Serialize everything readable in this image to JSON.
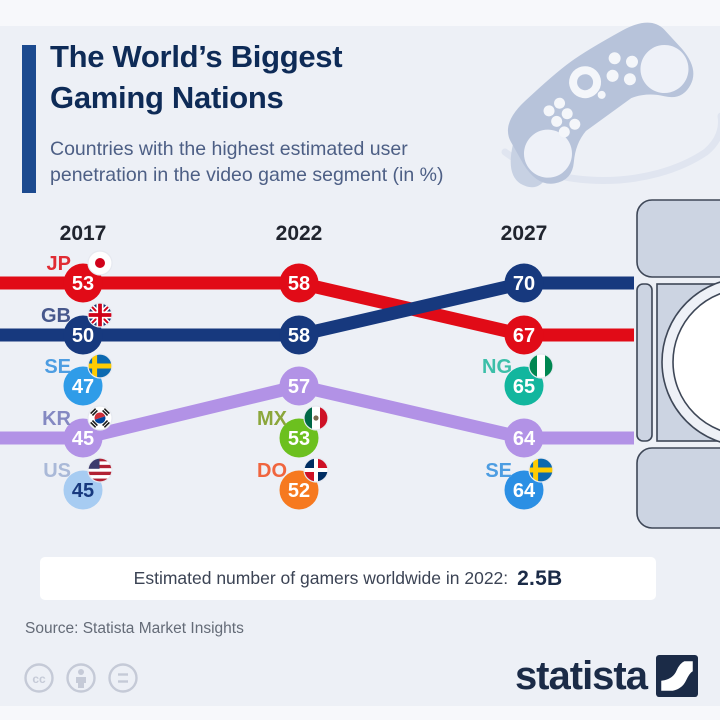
{
  "header": {
    "title_line1": "The World’s Biggest",
    "title_line2": "Gaming Nations",
    "subtitle_line1": "Countries with the highest estimated user",
    "subtitle_line2": "penetration in the video game segment (in %)",
    "accent_color": "#1c4a8f",
    "title_color": "#0e2b57"
  },
  "chart_data": {
    "type": "line",
    "x": [
      "2017",
      "2022",
      "2027"
    ],
    "unit": "% user penetration",
    "series": [
      {
        "code": "JP",
        "flag": "japan-flag-icon",
        "values": [
          53,
          58,
          67
        ],
        "rows": [
          1,
          1,
          2
        ],
        "color": "#e10b17",
        "label_color": "#e02b33",
        "value_color": "#ffffff"
      },
      {
        "code": "GB",
        "flag": "united-kingdom-flag-icon",
        "values": [
          50,
          58,
          70
        ],
        "rows": [
          2,
          2,
          1
        ],
        "color": "#17397e",
        "label_color": "#47588c",
        "value_color": "#ffffff"
      },
      {
        "code": "KR",
        "flag": "south-korea-flag-icon",
        "values": [
          45,
          57,
          64
        ],
        "rows": [
          4,
          3,
          4
        ],
        "color": "#b292e6",
        "label_color": "#8489c2",
        "value_color": "#ffffff"
      }
    ],
    "points": [
      {
        "code": "SE",
        "flag": "sweden-flag-icon",
        "x": "2017",
        "value": 47,
        "row": 3,
        "color": "#2f9ce8",
        "label_color": "#4d9de2",
        "value_color": "#ffffff"
      },
      {
        "code": "US",
        "flag": "united-states-flag-icon",
        "x": "2017",
        "value": 45,
        "row": 5,
        "color": "#a7ccf2",
        "label_color": "#aab9d8",
        "value_color": "#17397e"
      },
      {
        "code": "MX",
        "flag": "mexico-flag-icon",
        "x": "2022",
        "value": 53,
        "row": 4,
        "color": "#6cc01f",
        "label_color": "#8ba63b",
        "value_color": "#ffffff"
      },
      {
        "code": "DO",
        "flag": "dominican-republic-flag-icon",
        "x": "2022",
        "value": 52,
        "row": 5,
        "color": "#f6791f",
        "label_color": "#f0653e",
        "value_color": "#ffffff"
      },
      {
        "code": "NG",
        "flag": "nigeria-flag-icon",
        "x": "2027",
        "value": 65,
        "row": 3,
        "color": "#12b69e",
        "label_color": "#3cbfa9",
        "value_color": "#ffffff"
      },
      {
        "code": "SE",
        "flag": "sweden-flag-icon",
        "x": "2027",
        "value": 64,
        "row": 5,
        "color": "#2b8fe4",
        "label_color": "#4d9de2",
        "value_color": "#ffffff"
      }
    ],
    "year_label_color": "#20242e",
    "grid": false,
    "legend": false
  },
  "banner": {
    "text": "Estimated number of gamers worldwide in 2022:",
    "value": "2.5B"
  },
  "footer": {
    "source": "Source: Statista Market Insights",
    "brand": "statista",
    "brand_color": "#1b2b47"
  },
  "icons": {
    "decorative": [
      "game-controller-icon",
      "game-console-icon",
      "cc-license-icon",
      "cc-attribution-icon",
      "cc-nd-icon",
      "statista-logo-mark"
    ]
  }
}
